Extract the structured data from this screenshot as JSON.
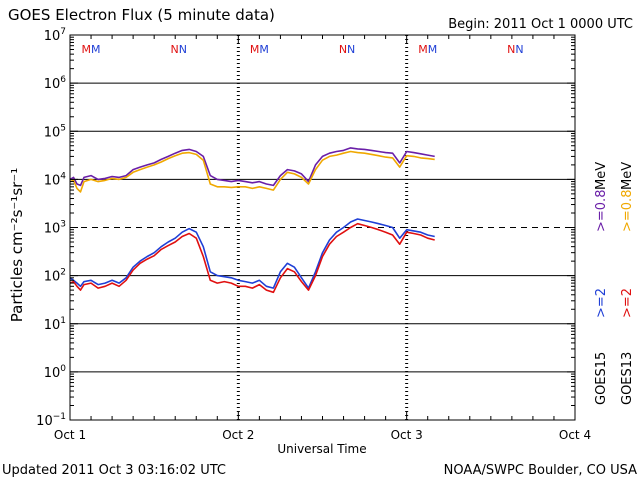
{
  "header": {
    "title": "GOES Electron Flux (5 minute data)",
    "begin": "Begin: 2011 Oct 1 0000 UTC"
  },
  "footer": {
    "updated": "Updated 2011 Oct  3 03:16:02 UTC",
    "credit": "NOAA/SWPC Boulder, CO USA"
  },
  "colors": {
    "goes15_ge2": "#1f3fd6",
    "goes13_ge2": "#e01010",
    "goes15_ge08": "#6a1fa8",
    "goes13_ge08": "#f0a800",
    "axis": "#000000"
  },
  "legend": {
    "goes15": "GOES15",
    "goes13": "GOES13",
    "ge2": ">=2",
    "ge08": ">=0.8",
    "mev": "MeV"
  },
  "chart_data": {
    "type": "line",
    "title": "GOES Electron Flux (5 minute data)",
    "xlabel": "Universal Time",
    "ylabel": "Particles cm⁻²s⁻¹sr⁻¹",
    "y_scale": "log",
    "ylim": [
      0.1,
      10000000
    ],
    "xlim": [
      0,
      72
    ],
    "x_unit": "hours since 2011 Oct 1 0000 UTC",
    "x_ticks": [
      {
        "x": 0,
        "label": "Oct 1"
      },
      {
        "x": 24,
        "label": "Oct 2"
      },
      {
        "x": 48,
        "label": "Oct 3"
      },
      {
        "x": 72,
        "label": "Oct 4"
      }
    ],
    "y_ticks": [
      {
        "exp": -1,
        "base": "10",
        "sup": "−1"
      },
      {
        "exp": 0,
        "base": "10",
        "sup": "0"
      },
      {
        "exp": 1,
        "base": "10",
        "sup": "1"
      },
      {
        "exp": 2,
        "base": "10",
        "sup": "2"
      },
      {
        "exp": 3,
        "base": "10",
        "sup": "3"
      },
      {
        "exp": 4,
        "base": "10",
        "sup": "4"
      },
      {
        "exp": 5,
        "base": "10",
        "sup": "5"
      },
      {
        "exp": 6,
        "base": "10",
        "sup": "6"
      },
      {
        "exp": 7,
        "base": "10",
        "sup": "7"
      }
    ],
    "grid_solid": [
      0,
      1,
      2,
      4,
      5,
      6
    ],
    "threshold_line": {
      "exp": 3,
      "style": "dashed"
    },
    "day_separators": [
      24,
      48
    ],
    "markers": [
      {
        "label": "MM",
        "x": 3
      },
      {
        "label": "NN",
        "x": 15.5
      },
      {
        "label": "MM",
        "x": 27
      },
      {
        "label": "NN",
        "x": 39.5
      },
      {
        "label": "MM",
        "x": 51
      },
      {
        "label": "NN",
        "x": 63.5
      }
    ],
    "series": [
      {
        "name": "GOES15 >=0.8 MeV",
        "color": "#6a1fa8",
        "x": [
          0,
          0.5,
          1,
          1.5,
          2,
          3,
          4,
          5,
          6,
          7,
          8,
          9,
          10,
          11,
          12,
          13,
          14,
          15,
          16,
          17,
          18,
          19,
          20,
          21,
          22,
          23,
          24,
          25,
          26,
          27,
          28,
          29,
          30,
          31,
          32,
          33,
          34,
          35,
          36,
          37,
          38,
          39,
          40,
          41,
          42,
          43,
          44,
          45,
          46,
          47,
          48,
          49,
          50,
          51,
          52
        ],
        "y": [
          10000,
          11000,
          8000,
          7500,
          11000,
          12000,
          10000,
          10500,
          11500,
          11000,
          12000,
          16000,
          18000,
          20000,
          22000,
          26000,
          30000,
          35000,
          40000,
          42000,
          38000,
          30000,
          12000,
          10000,
          9500,
          9000,
          9500,
          9000,
          8500,
          9000,
          8000,
          7500,
          12000,
          16000,
          15000,
          13000,
          9000,
          20000,
          30000,
          35000,
          38000,
          40000,
          45000,
          43000,
          42000,
          40000,
          38000,
          36000,
          35000,
          22000,
          38000,
          36000,
          34000,
          32000,
          30000
        ]
      },
      {
        "name": "GOES13 >=0.8 MeV",
        "color": "#f0a800",
        "x": [
          0,
          0.5,
          1,
          1.5,
          2,
          3,
          4,
          5,
          6,
          7,
          8,
          9,
          10,
          11,
          12,
          13,
          14,
          15,
          16,
          17,
          18,
          19,
          20,
          21,
          22,
          23,
          24,
          25,
          26,
          27,
          28,
          29,
          30,
          31,
          32,
          33,
          34,
          35,
          36,
          37,
          38,
          39,
          40,
          41,
          42,
          43,
          44,
          45,
          46,
          47,
          48,
          49,
          50,
          51,
          52
        ],
        "y": [
          9000,
          9500,
          6500,
          5500,
          9000,
          10000,
          9000,
          9500,
          10500,
          10000,
          11000,
          14000,
          16000,
          18000,
          20000,
          23000,
          27000,
          31000,
          35000,
          36000,
          33000,
          25000,
          8000,
          7000,
          7000,
          6800,
          7000,
          7000,
          6500,
          7000,
          6500,
          6000,
          10000,
          14000,
          13000,
          11000,
          8000,
          16000,
          25000,
          30000,
          32000,
          35000,
          38000,
          36000,
          35000,
          33000,
          31000,
          29000,
          28000,
          18000,
          31000,
          30000,
          28000,
          27000,
          26000
        ]
      },
      {
        "name": "GOES15 >=2 MeV",
        "color": "#1f3fd6",
        "x": [
          0,
          0.5,
          1,
          1.5,
          2,
          3,
          4,
          5,
          6,
          7,
          8,
          9,
          10,
          11,
          12,
          13,
          14,
          15,
          16,
          17,
          18,
          19,
          20,
          21,
          22,
          23,
          24,
          25,
          26,
          27,
          28,
          29,
          30,
          31,
          32,
          33,
          34,
          35,
          36,
          37,
          38,
          39,
          40,
          41,
          42,
          43,
          44,
          45,
          46,
          47,
          48,
          49,
          50,
          51,
          52
        ],
        "y": [
          90,
          80,
          70,
          60,
          75,
          80,
          65,
          70,
          80,
          70,
          90,
          150,
          200,
          250,
          300,
          400,
          500,
          600,
          800,
          950,
          800,
          400,
          120,
          100,
          95,
          90,
          80,
          75,
          70,
          80,
          60,
          55,
          120,
          180,
          150,
          90,
          55,
          120,
          300,
          550,
          800,
          1000,
          1300,
          1500,
          1400,
          1300,
          1200,
          1100,
          1000,
          600,
          900,
          850,
          800,
          700,
          650
        ]
      },
      {
        "name": "GOES13 >=2 MeV",
        "color": "#e01010",
        "x": [
          0,
          0.5,
          1,
          1.5,
          2,
          3,
          4,
          5,
          6,
          7,
          8,
          9,
          10,
          11,
          12,
          13,
          14,
          15,
          16,
          17,
          18,
          19,
          20,
          21,
          22,
          23,
          24,
          25,
          26,
          27,
          28,
          29,
          30,
          31,
          32,
          33,
          34,
          35,
          36,
          37,
          38,
          39,
          40,
          41,
          42,
          43,
          44,
          45,
          46,
          47,
          48,
          49,
          50,
          51,
          52
        ],
        "y": [
          70,
          75,
          60,
          50,
          65,
          70,
          55,
          60,
          70,
          60,
          80,
          130,
          180,
          220,
          260,
          350,
          420,
          500,
          650,
          750,
          600,
          250,
          80,
          70,
          75,
          70,
          60,
          60,
          55,
          65,
          50,
          45,
          90,
          140,
          120,
          75,
          50,
          100,
          250,
          450,
          650,
          800,
          1000,
          1200,
          1100,
          1000,
          900,
          800,
          700,
          450,
          800,
          750,
          700,
          600,
          550
        ]
      }
    ]
  }
}
